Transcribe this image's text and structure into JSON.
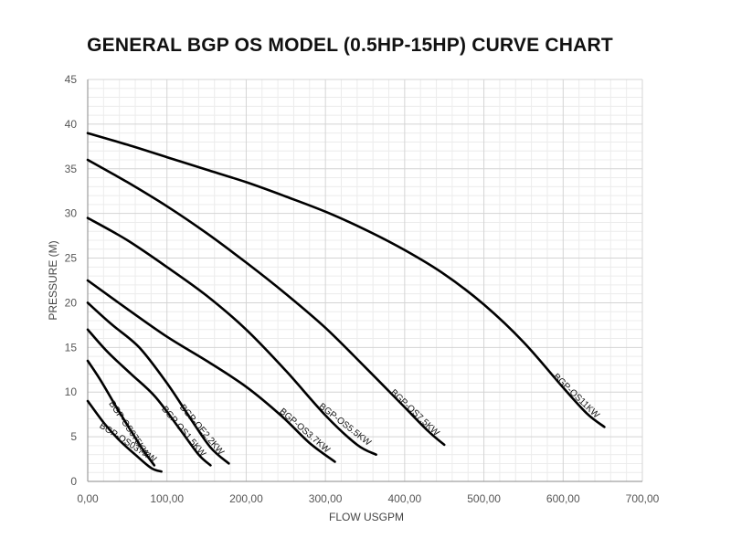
{
  "chart_data": {
    "type": "line",
    "title": "GENERAL BGP OS MODEL (0.5HP-15HP) CURVE CHART",
    "xlabel": "FLOW USGPM",
    "ylabel": "PRESSURE (M)",
    "xlim": [
      0,
      700
    ],
    "ylim": [
      0,
      45
    ],
    "x_ticks": [
      {
        "value": 0,
        "label": "0,00"
      },
      {
        "value": 100,
        "label": "100,00"
      },
      {
        "value": 200,
        "label": "200,00"
      },
      {
        "value": 300,
        "label": "300,00"
      },
      {
        "value": 400,
        "label": "400,00"
      },
      {
        "value": 500,
        "label": "500,00"
      },
      {
        "value": 600,
        "label": "600,00"
      },
      {
        "value": 700,
        "label": "700,00"
      }
    ],
    "y_ticks": [
      {
        "value": 0,
        "label": "0"
      },
      {
        "value": 5,
        "label": "5"
      },
      {
        "value": 10,
        "label": "10"
      },
      {
        "value": 15,
        "label": "15"
      },
      {
        "value": 20,
        "label": "20"
      },
      {
        "value": 25,
        "label": "25"
      },
      {
        "value": 30,
        "label": "30"
      },
      {
        "value": 35,
        "label": "35"
      },
      {
        "value": 40,
        "label": "40"
      },
      {
        "value": 45,
        "label": "45"
      }
    ],
    "grid": true,
    "legend": "none",
    "line_color": "#000000",
    "series": [
      {
        "name": "BGP-OS037KW",
        "points": [
          [
            0,
            9
          ],
          [
            20,
            6.6
          ],
          [
            40,
            4.6
          ],
          [
            60,
            3
          ],
          [
            80,
            1.5
          ],
          [
            93,
            1.1
          ]
        ]
      },
      {
        "name": "BGP-OS075KW",
        "points": [
          [
            0,
            13.5
          ],
          [
            15,
            11.5
          ],
          [
            35,
            8.5
          ],
          [
            55,
            5.6
          ],
          [
            70,
            3.5
          ],
          [
            84,
            1.8
          ]
        ]
      },
      {
        "name": "BGP-OS1.5KW",
        "points": [
          [
            0,
            17
          ],
          [
            25,
            14.5
          ],
          [
            55,
            12
          ],
          [
            85,
            9.5
          ],
          [
            115,
            6
          ],
          [
            140,
            3
          ],
          [
            155,
            1.8
          ]
        ]
      },
      {
        "name": "BGP-OE2.2KW",
        "points": [
          [
            0,
            20
          ],
          [
            30,
            17.6
          ],
          [
            65,
            15
          ],
          [
            100,
            11
          ],
          [
            130,
            7
          ],
          [
            155,
            3.8
          ],
          [
            178,
            2
          ]
        ]
      },
      {
        "name": "BGP-OS3.7KW",
        "points": [
          [
            0,
            22.5
          ],
          [
            50,
            19.3
          ],
          [
            100,
            16.2
          ],
          [
            150,
            13.5
          ],
          [
            200,
            10.6
          ],
          [
            245,
            7.3
          ],
          [
            280,
            4.3
          ],
          [
            312,
            2.2
          ]
        ]
      },
      {
        "name": "BGP-OS5.5KW",
        "points": [
          [
            0,
            29.5
          ],
          [
            50,
            27
          ],
          [
            100,
            24
          ],
          [
            150,
            20.8
          ],
          [
            200,
            17
          ],
          [
            250,
            12.4
          ],
          [
            300,
            7.4
          ],
          [
            340,
            4.1
          ],
          [
            364,
            3
          ]
        ]
      },
      {
        "name": "BGP-OS7.5KW",
        "points": [
          [
            0,
            36
          ],
          [
            50,
            33.5
          ],
          [
            100,
            30.8
          ],
          [
            150,
            27.8
          ],
          [
            200,
            24.5
          ],
          [
            250,
            21
          ],
          [
            300,
            17.2
          ],
          [
            350,
            12.8
          ],
          [
            400,
            8.3
          ],
          [
            430,
            5.6
          ],
          [
            450,
            4.1
          ]
        ]
      },
      {
        "name": "BGP-OS11KW",
        "points": [
          [
            0,
            39
          ],
          [
            50,
            37.7
          ],
          [
            100,
            36.3
          ],
          [
            150,
            34.9
          ],
          [
            200,
            33.5
          ],
          [
            250,
            31.9
          ],
          [
            300,
            30.2
          ],
          [
            350,
            28.2
          ],
          [
            400,
            25.9
          ],
          [
            450,
            23.2
          ],
          [
            500,
            19.8
          ],
          [
            550,
            15.6
          ],
          [
            600,
            10.5
          ],
          [
            630,
            7.6
          ],
          [
            652,
            6.1
          ]
        ]
      }
    ]
  }
}
